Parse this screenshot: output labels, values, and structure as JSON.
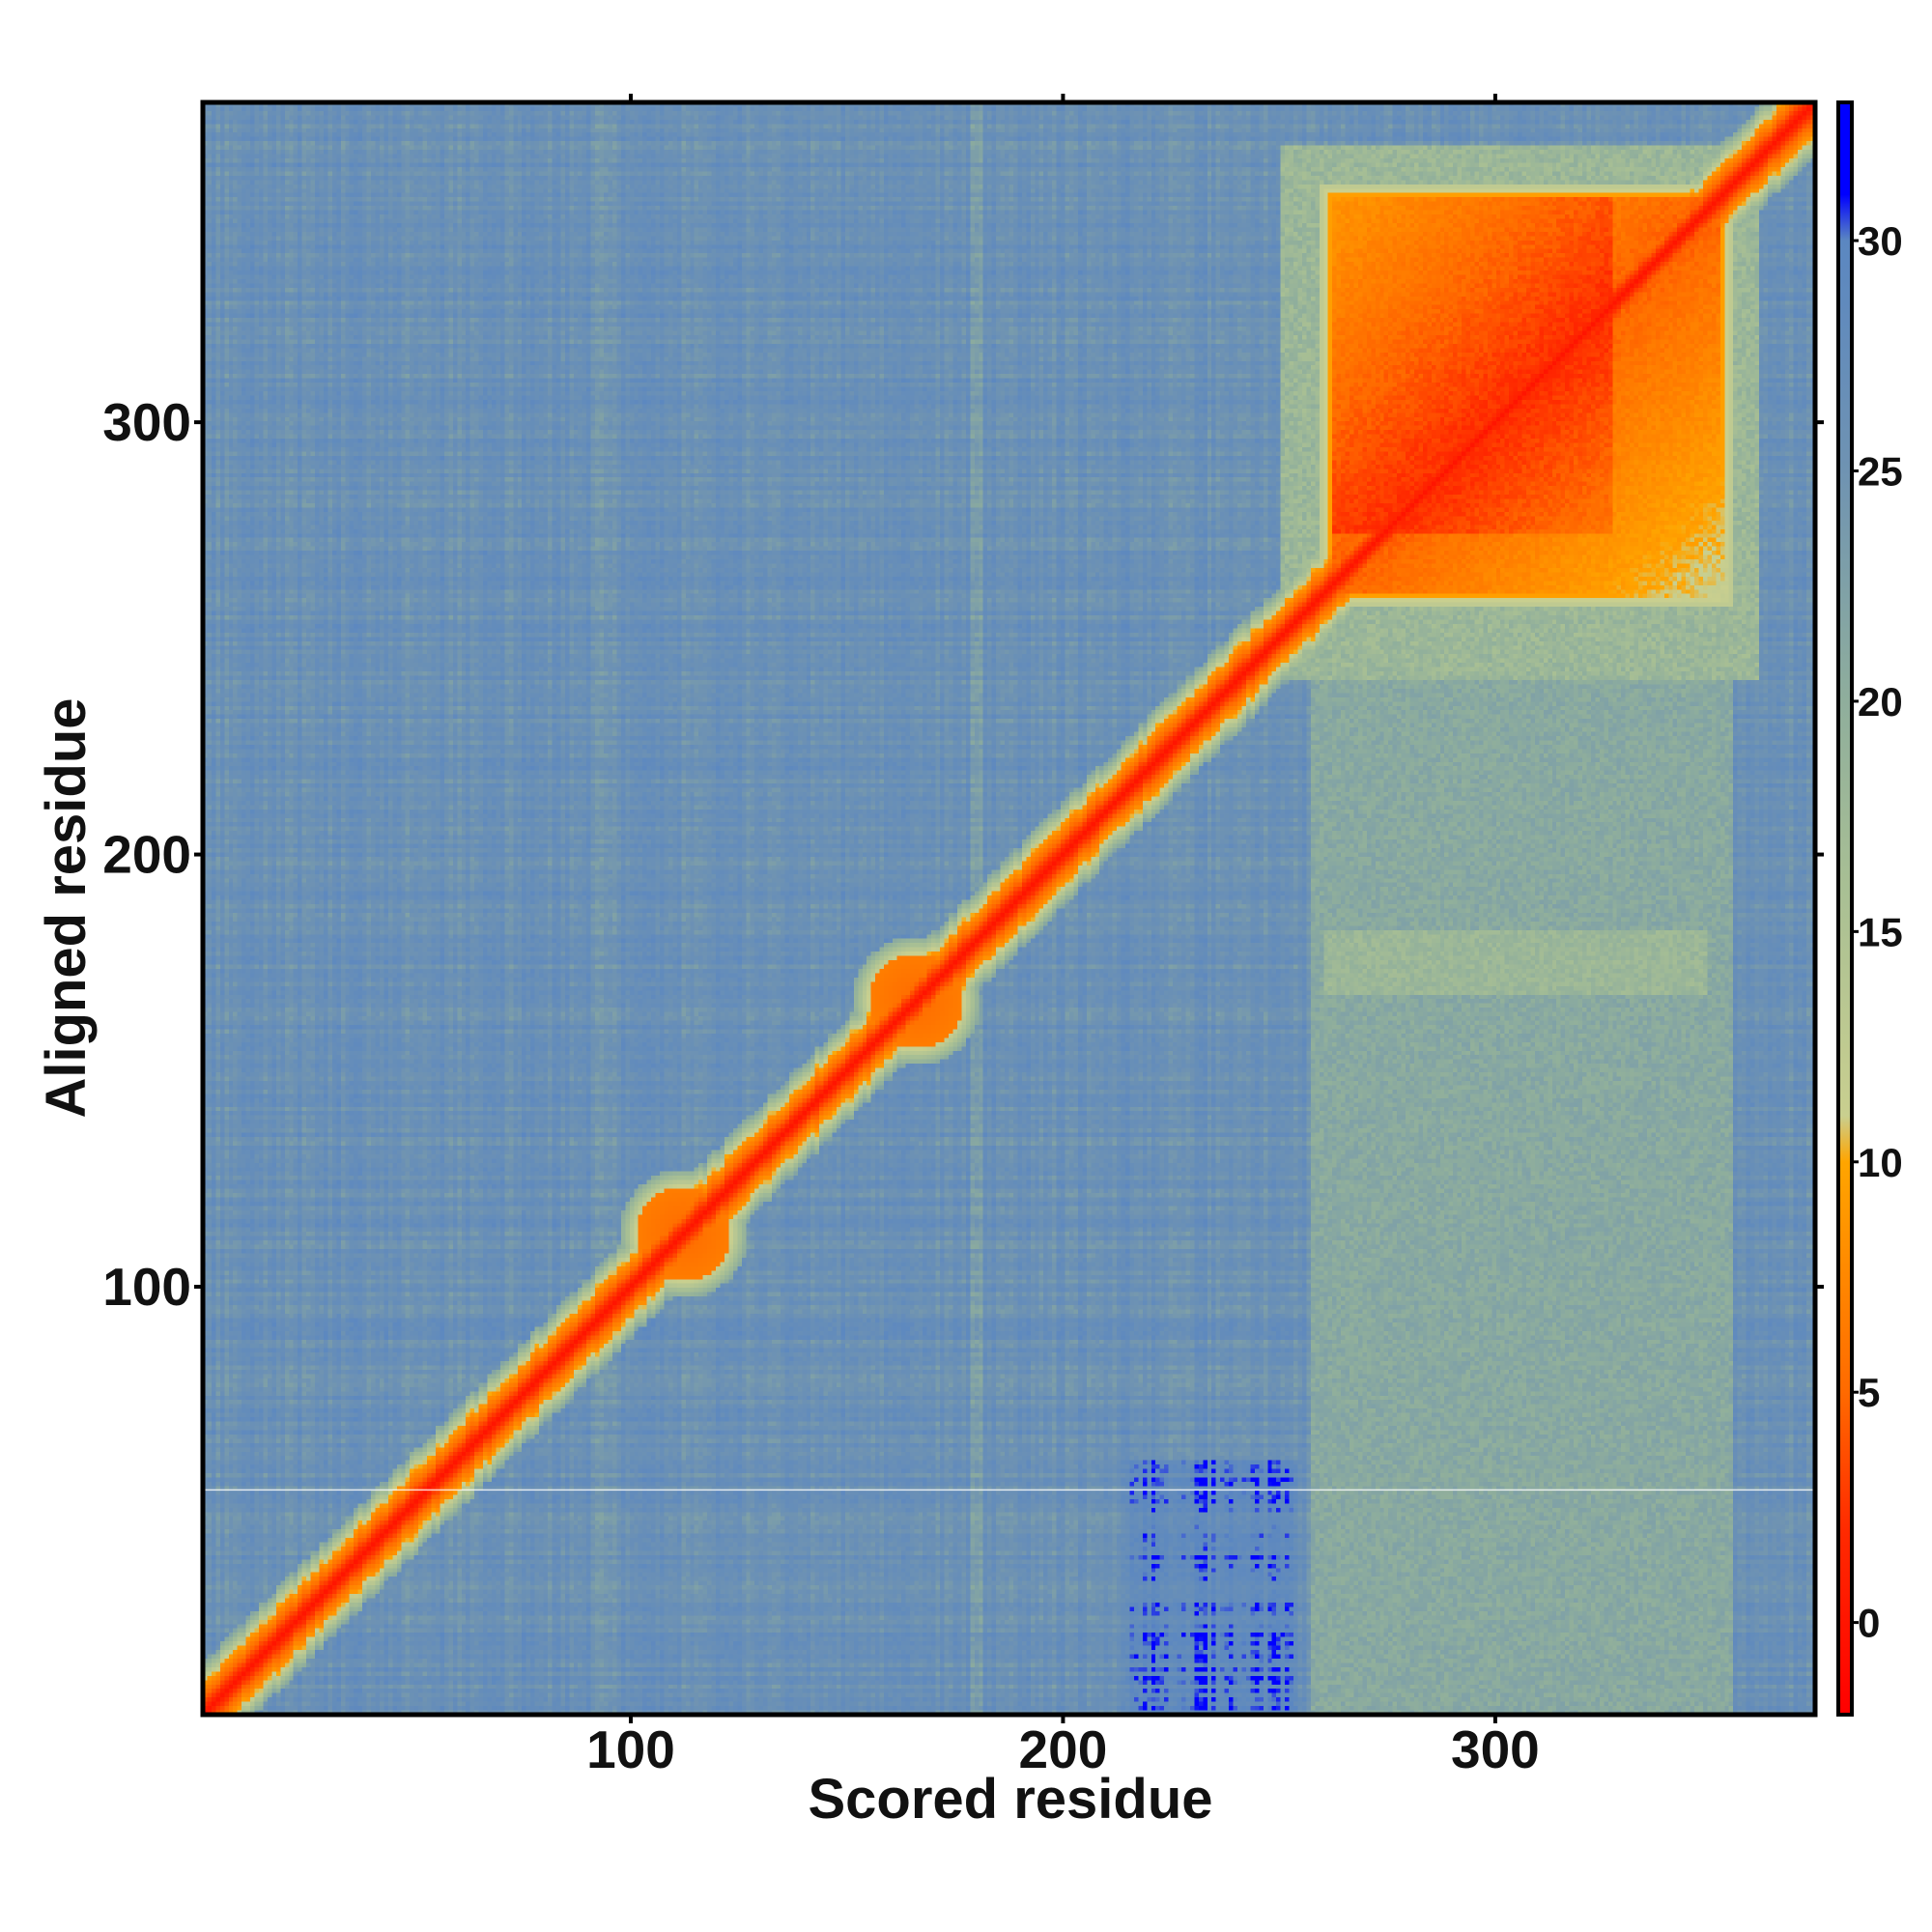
{
  "chart_data": {
    "type": "heatmap",
    "xlabel": "Scored residue",
    "ylabel": "Aligned residue",
    "xlim": [
      1,
      374
    ],
    "ylim": [
      1,
      374
    ],
    "x_ticks": [
      100,
      200,
      300
    ],
    "y_ticks": [
      100,
      200,
      300
    ],
    "colorbar": {
      "range": [
        -2,
        33
      ],
      "ticks": [
        0,
        5,
        10,
        15,
        20,
        25,
        30
      ],
      "stops": [
        {
          "value": -2,
          "color": "#ff0000"
        },
        {
          "value": 2,
          "color": "#ff2a00"
        },
        {
          "value": 5,
          "color": "#ff6a00"
        },
        {
          "value": 10,
          "color": "#ffa500"
        },
        {
          "value": 11,
          "color": "#c9cf8f"
        },
        {
          "value": 16,
          "color": "#a8bf94"
        },
        {
          "value": 20,
          "color": "#8fae9c"
        },
        {
          "value": 25,
          "color": "#6f93b2"
        },
        {
          "value": 30,
          "color": "#5b87c1"
        },
        {
          "value": 31,
          "color": "#0000ff"
        },
        {
          "value": 33,
          "color": "#0000ff"
        }
      ]
    },
    "regions": {
      "background_value": 26,
      "diagonal_core_value": 0,
      "diagonal_band_value": 4,
      "c_terminal_domain": {
        "x": [
          260,
          355
        ],
        "y": [
          258,
          355
        ],
        "value": 5
      },
      "interdomain_blocks_value": 20,
      "local_blobs": [
        {
          "center": [
            112,
            112
          ],
          "value": 5
        },
        {
          "center": [
            166,
            166
          ],
          "value": 5
        }
      ]
    }
  }
}
